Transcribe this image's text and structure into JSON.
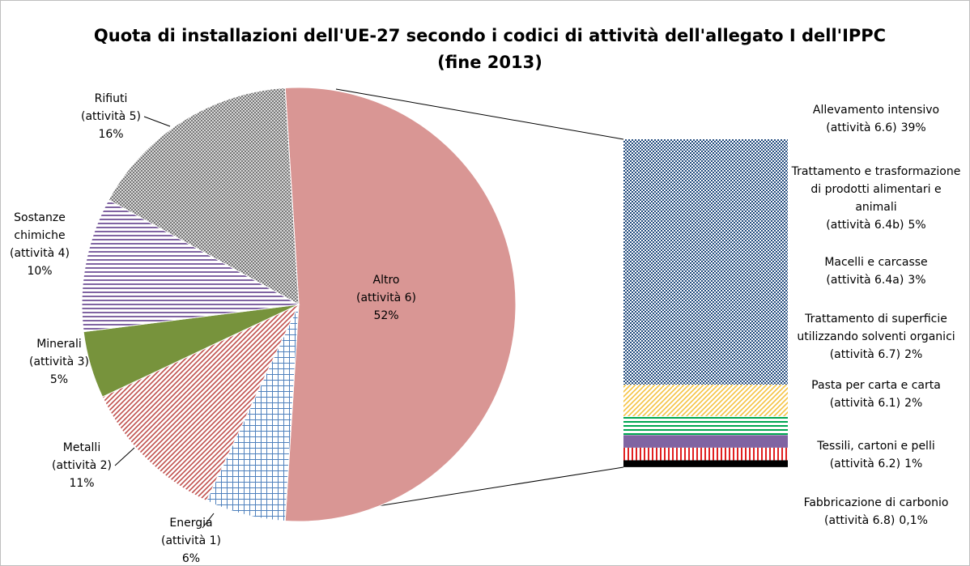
{
  "chart_data": {
    "type": "pie-of-bar",
    "title": [
      "Quota di installazioni dell'UE-27 secondo i codici di attività dell'allegato I dell'IPPC",
      "(fine 2013)"
    ],
    "pie": {
      "categories": [
        [
          "Altro",
          "(attività 6)"
        ],
        [
          "Energia",
          "(attività 1)"
        ],
        [
          "Metalli",
          "(attività 2)"
        ],
        [
          "Minerali",
          "(attività 3)"
        ],
        [
          "Sostanze",
          "chimiche",
          "(attività 4)"
        ],
        [
          "Rifiuti",
          "(attività 5)"
        ]
      ],
      "values": [
        52,
        6,
        11,
        5,
        10,
        16
      ],
      "value_labels": [
        "52%",
        "6%",
        "11%",
        "5%",
        "10%",
        "16%"
      ],
      "colors": [
        "#d99694",
        "#4f81bd",
        "#c0504d",
        "#77933c",
        "#8064a2",
        "#595959"
      ],
      "patterns": [
        "solid",
        "grid",
        "diagonal",
        "solid",
        "horizontal",
        "dots"
      ]
    },
    "bar": {
      "categories": [
        [
          "Allevamento intensivo",
          "(attività 6.6)"
        ],
        [
          "Trattamento e trasformazione",
          "di prodotti alimentari e",
          "animali",
          "(attività 6.4b)"
        ],
        [
          "Macelli e carcasse",
          "(attività 6.4a)"
        ],
        [
          "Trattamento di superficie",
          "utilizzando solventi organici",
          "(attività 6.7)"
        ],
        [
          "Pasta per carta e carta",
          "(attività 6.1)"
        ],
        [
          "Tessili, cartoni e pelli",
          "(attività 6.2)"
        ],
        [
          "Fabbricazione di carbonio",
          "(attività 6.8)"
        ]
      ],
      "values": [
        39,
        5,
        3,
        2,
        2,
        1,
        0.1
      ],
      "value_labels": [
        "39%",
        "5%",
        "3%",
        "2%",
        "2%",
        "1%",
        "0,1%"
      ],
      "colors": [
        "#1f497d",
        "#f5c342",
        "#00a651",
        "#8064a2",
        "#e02020",
        "#000000",
        "#000000"
      ],
      "patterns": [
        "checker",
        "diagonal",
        "horizontal",
        "solid",
        "vertical",
        "solid",
        "solid"
      ]
    }
  }
}
